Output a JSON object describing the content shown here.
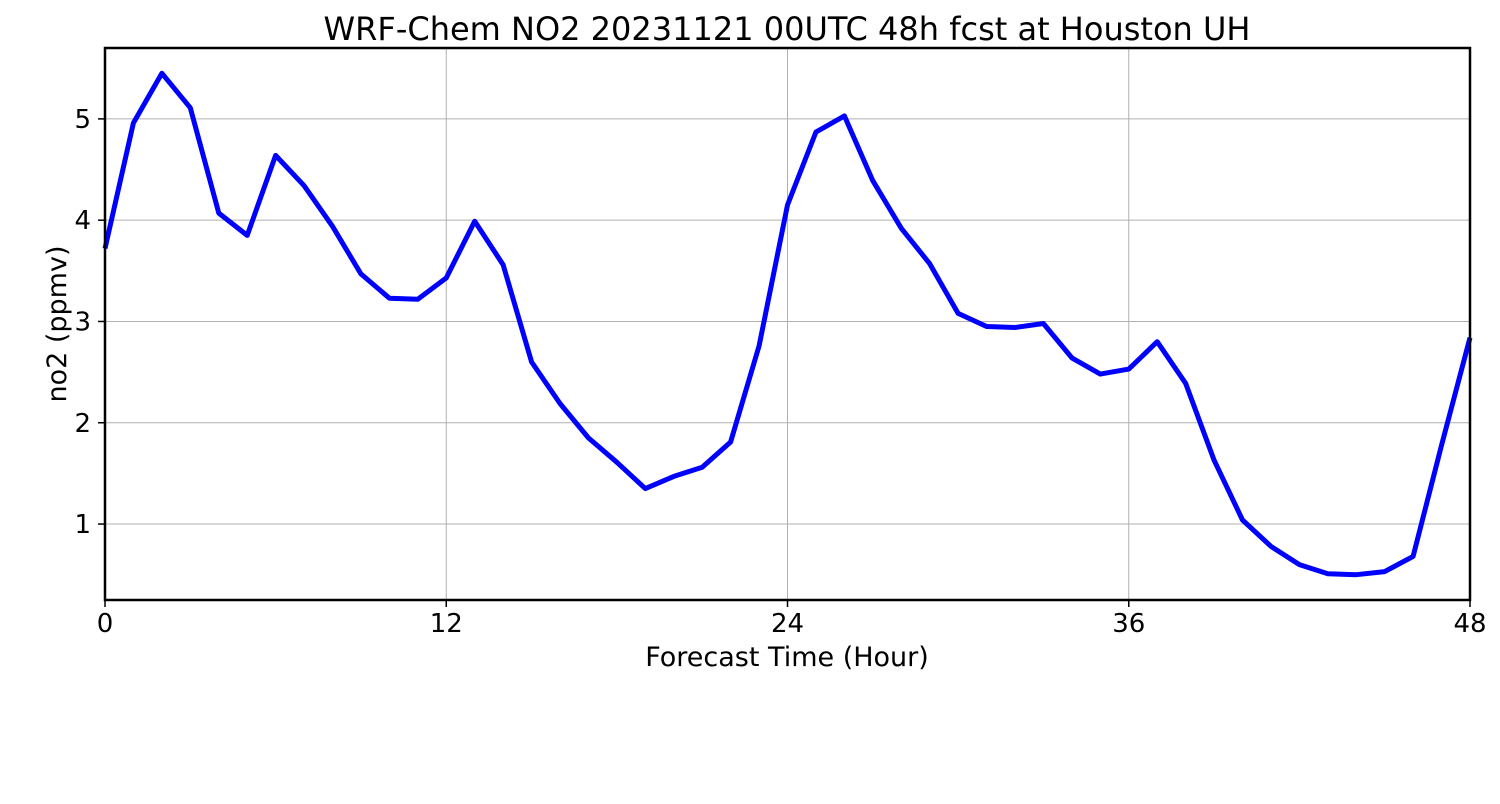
{
  "chart_data": {
    "type": "line",
    "title": "WRF-Chem NO2  20231121 00UTC 48h fcst at Houston UH",
    "xlabel": "Forecast Time (Hour)",
    "ylabel": "no2  (ppmv)",
    "xlim": [
      0,
      48
    ],
    "ylim": [
      0.25,
      5.7
    ],
    "x_ticks": [
      0,
      12,
      24,
      36,
      48
    ],
    "y_ticks": [
      1,
      2,
      3,
      4,
      5
    ],
    "grid": true,
    "series": [
      {
        "color": "#0000ff",
        "x": [
          0,
          1,
          2,
          3,
          4,
          5,
          6,
          7,
          8,
          9,
          10,
          11,
          12,
          13,
          14,
          15,
          16,
          17,
          18,
          19,
          20,
          21,
          22,
          23,
          24,
          25,
          26,
          27,
          28,
          29,
          30,
          31,
          32,
          33,
          34,
          35,
          36,
          37,
          38,
          39,
          40,
          41,
          42,
          43,
          44,
          45,
          46,
          47,
          48
        ],
        "y": [
          3.72,
          4.96,
          5.45,
          5.11,
          4.07,
          3.85,
          4.64,
          4.34,
          3.94,
          3.47,
          3.23,
          3.22,
          3.43,
          3.99,
          3.56,
          2.6,
          2.19,
          1.85,
          1.61,
          1.35,
          1.47,
          1.56,
          1.81,
          2.76,
          4.15,
          4.87,
          5.03,
          4.39,
          3.92,
          3.57,
          3.08,
          2.95,
          2.94,
          2.98,
          2.64,
          2.48,
          2.53,
          2.8,
          2.39,
          1.63,
          1.04,
          0.78,
          0.6,
          0.51,
          0.5,
          0.53,
          0.68,
          1.78,
          2.84
        ]
      }
    ]
  }
}
